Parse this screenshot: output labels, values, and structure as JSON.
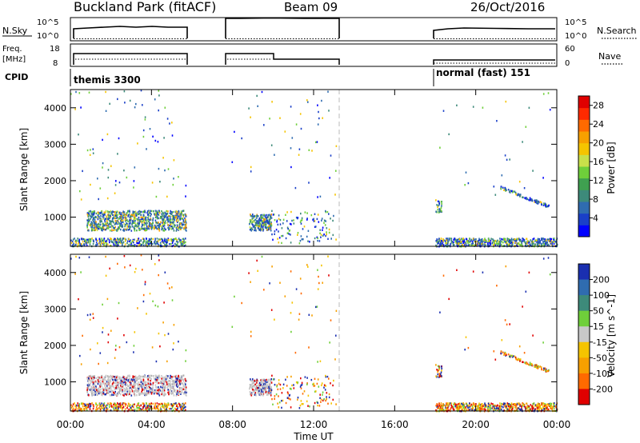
{
  "header": {
    "site": "Buckland Park (fitACF)",
    "beam": "Beam 09",
    "date": "26/Oct/2016"
  },
  "top_panels": {
    "nsky_label": "N.Sky",
    "nsky_ticks": [
      "10^5",
      "10^0"
    ],
    "nsearch_label": "N.Search",
    "nsearch_ticks": [
      "10^5",
      "10^0"
    ],
    "freq_label": "Freq.",
    "freq_unit": "[MHz]",
    "freq_ticks": [
      "18",
      "8"
    ],
    "nave_label": "Nave",
    "nave_ticks": [
      "60",
      "0"
    ],
    "cpid_label": "CPID",
    "cpid_segments": [
      {
        "label": "themis 3300",
        "start_hour": 0.0
      },
      {
        "label": "normal (fast) 151",
        "start_hour": 18.0
      }
    ]
  },
  "chart_data": [
    {
      "type": "heatmap",
      "panel": "power",
      "xlabel": "",
      "ylabel": "Slant Range [km]",
      "x_range_hours": [
        0,
        24
      ],
      "ylim": [
        200,
        4500
      ],
      "y_ticks": [
        1000,
        2000,
        3000,
        4000
      ],
      "colorbar_label": "Power [dB]",
      "colorbar_ticks": [
        4,
        8,
        12,
        16,
        20,
        24,
        28
      ],
      "colorbar_range": [
        0,
        30
      ],
      "colorbar_colors": [
        "#0000ff",
        "#1a3fc8",
        "#2f6cb0",
        "#3d8a7a",
        "#3fa050",
        "#6fcf3a",
        "#c8e04a",
        "#f5c400",
        "#f7a000",
        "#ff6a00",
        "#ff2a00",
        "#e00000"
      ],
      "data_gaps_hours": [
        [
          5.75,
          7.6
        ],
        [
          13.3,
          18.0
        ]
      ],
      "reference_line_hour": 13.2
    },
    {
      "type": "heatmap",
      "panel": "velocity",
      "xlabel": "Time UT",
      "ylabel": "Slant Range [km]",
      "x_ticks": [
        "00:00",
        "04:00",
        "08:00",
        "12:00",
        "16:00",
        "20:00",
        "00:00"
      ],
      "x_range_hours": [
        0,
        24
      ],
      "ylim": [
        200,
        4500
      ],
      "y_ticks": [
        1000,
        2000,
        3000,
        4000
      ],
      "colorbar_label": "Velocity [m s^-1]",
      "colorbar_ticks": [
        200,
        100,
        50,
        15,
        -15,
        -50,
        -100,
        -200
      ],
      "colorbar_colors": [
        "#1a2fb0",
        "#2f6cb0",
        "#3d8a7a",
        "#6fcf3a",
        "#c8c8c8",
        "#f5c400",
        "#f7a000",
        "#ff6a00",
        "#e00000"
      ],
      "data_gaps_hours": [
        [
          5.75,
          7.6
        ],
        [
          13.3,
          18.0
        ]
      ],
      "reference_line_hour": 13.2
    }
  ]
}
